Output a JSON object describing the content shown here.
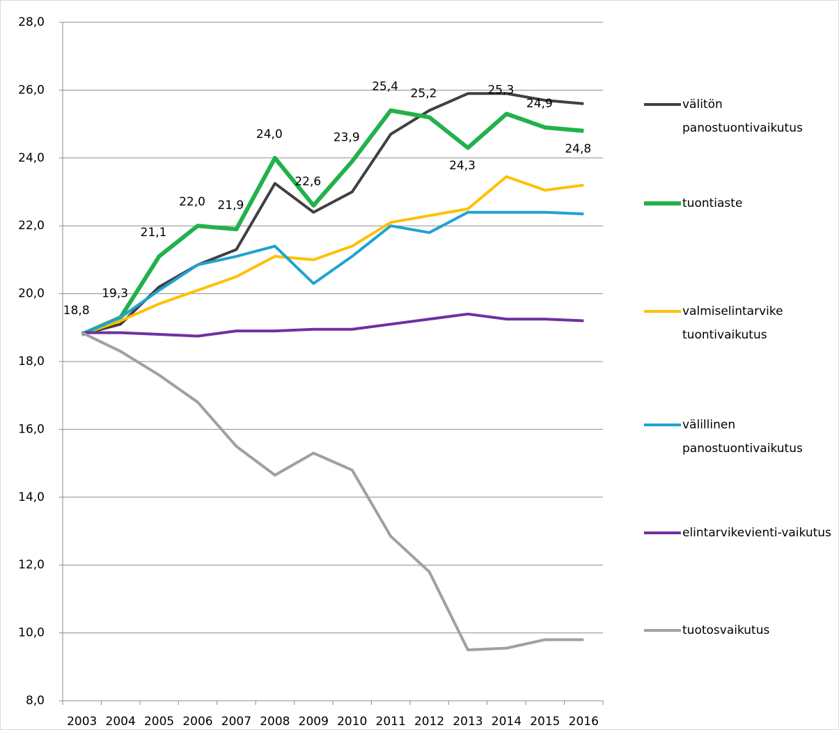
{
  "chart_data": {
    "type": "line",
    "categories": [
      "2003",
      "2004",
      "2005",
      "2006",
      "2007",
      "2008",
      "2009",
      "2010",
      "2011",
      "2012",
      "2013",
      "2014",
      "2015",
      "2016"
    ],
    "ylim": [
      8,
      28
    ],
    "yticks": [
      {
        "value": 8,
        "label": "8,0"
      },
      {
        "value": 10,
        "label": "10,0"
      },
      {
        "value": 12,
        "label": "12,0"
      },
      {
        "value": 14,
        "label": "14,0"
      },
      {
        "value": 16,
        "label": "16,0"
      },
      {
        "value": 18,
        "label": "18,0"
      },
      {
        "value": 20,
        "label": "20,0"
      },
      {
        "value": 22,
        "label": "22,0"
      },
      {
        "value": 24,
        "label": "24,0"
      },
      {
        "value": 26,
        "label": "26,0"
      },
      {
        "value": 28,
        "label": "28,0"
      }
    ],
    "grid": true,
    "legend": "right",
    "series": [
      {
        "name": "välitön panostuontivaikutus",
        "color": "#404040",
        "width": 4,
        "values": [
          18.8,
          19.1,
          20.2,
          20.85,
          21.3,
          23.25,
          22.4,
          23.0,
          24.7,
          25.4,
          25.9,
          25.9,
          25.7,
          25.6
        ]
      },
      {
        "name": "tuontiaste",
        "color": "#22b14c",
        "width": 6,
        "values": [
          18.8,
          19.3,
          21.1,
          22.0,
          21.9,
          24.0,
          22.6,
          23.9,
          25.4,
          25.2,
          24.3,
          25.3,
          24.9,
          24.8
        ],
        "value_labels": [
          "18,8",
          "19,3",
          "21,1",
          "22,0",
          "21,9",
          "24,0",
          "22,6",
          "23,9",
          "25,4",
          "25,2",
          "24,3",
          "25,3",
          "24,9",
          "24,8"
        ]
      },
      {
        "name": "valmiselintarvike tuontivaikutus",
        "color": "#ffc000",
        "width": 4,
        "values": [
          18.8,
          19.2,
          19.7,
          20.1,
          20.5,
          21.1,
          21.0,
          21.4,
          22.1,
          22.3,
          22.5,
          23.45,
          23.05,
          23.2
        ]
      },
      {
        "name": "välillinen panostuontivaikutus",
        "color": "#1fa2d0",
        "width": 4,
        "values": [
          18.8,
          19.3,
          20.1,
          20.85,
          21.1,
          21.4,
          20.3,
          21.1,
          22.0,
          21.8,
          22.4,
          22.4,
          22.4,
          22.35
        ]
      },
      {
        "name": "elintarvikevienti-vaikutus",
        "color": "#7030a0",
        "width": 4,
        "values": [
          18.85,
          18.85,
          18.8,
          18.75,
          18.9,
          18.9,
          18.95,
          18.95,
          19.1,
          19.25,
          19.4,
          19.25,
          19.25,
          19.2
        ]
      },
      {
        "name": "tuotosvaikutus",
        "color": "#a0a0a0",
        "width": 4,
        "values": [
          18.85,
          18.3,
          17.6,
          16.8,
          15.5,
          14.65,
          15.3,
          14.8,
          12.85,
          11.8,
          9.5,
          9.55,
          9.8,
          9.8
        ]
      }
    ]
  }
}
